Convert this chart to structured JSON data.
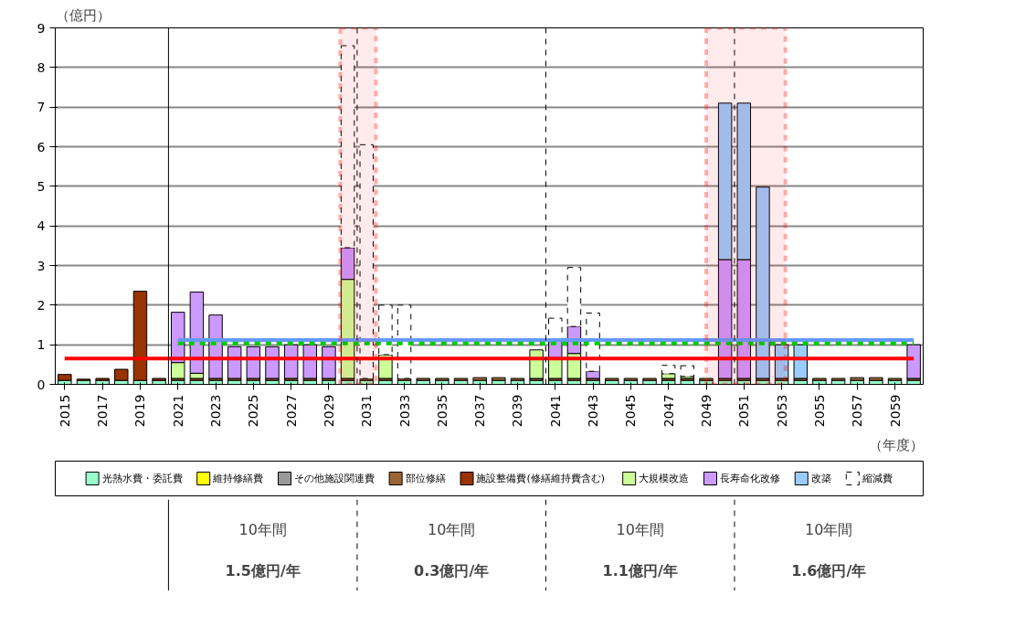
{
  "chart_data": {
    "type": "bar",
    "stacked": true,
    "ylabel": "（億円）",
    "xlabel": "（年度）",
    "x": [
      2015,
      2016,
      2017,
      2018,
      2019,
      2020,
      2021,
      2022,
      2023,
      2024,
      2025,
      2026,
      2027,
      2028,
      2029,
      2030,
      2031,
      2032,
      2033,
      2034,
      2035,
      2036,
      2037,
      2038,
      2039,
      2040,
      2041,
      2042,
      2043,
      2044,
      2045,
      2046,
      2047,
      2048,
      2049,
      2050,
      2051,
      2052,
      2053,
      2054,
      2055,
      2056,
      2057,
      2058,
      2059,
      2060
    ],
    "xlim": [
      2014.5,
      2060.5
    ],
    "xticks": [
      2015,
      2017,
      2019,
      2021,
      2023,
      2025,
      2027,
      2029,
      2031,
      2033,
      2035,
      2037,
      2039,
      2041,
      2043,
      2045,
      2047,
      2049,
      2051,
      2053,
      2055,
      2057,
      2059
    ],
    "ylim": [
      0,
      9
    ],
    "yticks": [
      0,
      1,
      2,
      3,
      4,
      5,
      6,
      7,
      8,
      9
    ],
    "grid": "y",
    "legend": "bottom",
    "series": [
      {
        "name": "光熱水費・委託費",
        "color": "#99ffcc",
        "values": [
          0.1,
          0.1,
          0.1,
          0.1,
          0.1,
          0.1,
          0.1,
          0.1,
          0.1,
          0.1,
          0.1,
          0.1,
          0.1,
          0.1,
          0.1,
          0.1,
          0.1,
          0.1,
          0.1,
          0.1,
          0.1,
          0.1,
          0.1,
          0.1,
          0.1,
          0.1,
          0.1,
          0.1,
          0.1,
          0.1,
          0.1,
          0.1,
          0.1,
          0.1,
          0.1,
          0.1,
          0.1,
          0.1,
          0.1,
          0.1,
          0.1,
          0.1,
          0.1,
          0.1,
          0.1,
          0.1
        ]
      },
      {
        "name": "維持修繕費",
        "color": "#ffff00",
        "values": [
          0,
          0,
          0,
          0,
          0,
          0,
          0,
          0,
          0,
          0,
          0,
          0,
          0,
          0,
          0,
          0,
          0,
          0,
          0,
          0,
          0,
          0,
          0,
          0,
          0,
          0,
          0,
          0,
          0,
          0,
          0,
          0,
          0,
          0,
          0,
          0,
          0,
          0,
          0,
          0,
          0,
          0,
          0,
          0,
          0,
          0
        ]
      },
      {
        "name": "その他施設関連費",
        "color": "#999999",
        "values": [
          0,
          0,
          0,
          0,
          0,
          0,
          0,
          0,
          0,
          0,
          0,
          0,
          0,
          0,
          0,
          0,
          0,
          0,
          0,
          0,
          0,
          0,
          0,
          0,
          0,
          0,
          0,
          0,
          0,
          0,
          0,
          0,
          0,
          0,
          0,
          0,
          0,
          0,
          0,
          0,
          0,
          0,
          0,
          0,
          0,
          0
        ]
      },
      {
        "name": "部位修繕",
        "color": "#996633",
        "values": [
          0,
          0,
          0,
          0,
          0,
          0,
          0.05,
          0.05,
          0.05,
          0.05,
          0.05,
          0.05,
          0.05,
          0.05,
          0.05,
          0.05,
          0.05,
          0.05,
          0.05,
          0.05,
          0.05,
          0.05,
          0.07,
          0.07,
          0.05,
          0.05,
          0.05,
          0.05,
          0.05,
          0.05,
          0.05,
          0.05,
          0.05,
          0.05,
          0.05,
          0.05,
          0.05,
          0.05,
          0.05,
          0.05,
          0.05,
          0.05,
          0.07,
          0.07,
          0.05,
          0.05
        ]
      },
      {
        "name": "施設整備費(修繕維持費含む)",
        "color": "#993300",
        "values": [
          0.15,
          0.03,
          0.05,
          0.28,
          2.25,
          0.05,
          0,
          0,
          0,
          0,
          0,
          0,
          0,
          0,
          0,
          0,
          0,
          0,
          0,
          0,
          0,
          0,
          0,
          0,
          0,
          0,
          0,
          0,
          0,
          0,
          0,
          0,
          0,
          0,
          0,
          0,
          0,
          0,
          0,
          0,
          0,
          0,
          0,
          0,
          0,
          0
        ]
      },
      {
        "name": "大規模改造",
        "color": "#ccff99",
        "values": [
          0,
          0,
          0,
          0,
          0,
          0,
          0.4,
          0.13,
          0,
          0,
          0,
          0,
          0,
          0,
          0,
          2.5,
          0,
          0.6,
          0,
          0,
          0,
          0,
          0,
          0,
          0,
          0.72,
          0.5,
          0.63,
          0,
          0,
          0,
          0,
          0.12,
          0.05,
          0,
          0,
          0,
          0,
          0,
          0,
          0,
          0,
          0,
          0,
          0,
          0
        ]
      },
      {
        "name": "長寿命化改修",
        "color": "#cc99ff",
        "values": [
          0,
          0,
          0,
          0,
          0,
          0,
          1.27,
          2.05,
          1.6,
          0.8,
          0.8,
          0.8,
          0.85,
          0.85,
          0.8,
          0.8,
          0,
          0,
          0,
          0,
          0,
          0,
          0,
          0,
          0,
          0,
          0.45,
          0.68,
          0.18,
          0,
          0,
          0,
          0,
          0,
          0,
          3.0,
          3.0,
          0,
          0,
          0,
          0,
          0,
          0,
          0,
          0,
          0.85
        ]
      },
      {
        "name": "改築",
        "color": "#99ccff",
        "values": [
          0,
          0,
          0,
          0,
          0,
          0,
          0,
          0,
          0,
          0,
          0,
          0,
          0,
          0,
          0,
          0,
          0,
          0,
          0,
          0,
          0,
          0,
          0,
          0,
          0,
          0,
          0,
          0,
          0,
          0,
          0,
          0,
          0,
          0,
          0,
          3.95,
          3.95,
          4.83,
          0.85,
          0.85,
          0,
          0,
          0,
          0,
          0,
          0
        ]
      },
      {
        "name": "縮減費",
        "color": "#ffffff",
        "line_style": "dashed",
        "values": [
          0,
          0,
          0,
          0,
          0,
          0,
          0,
          0,
          0,
          0,
          0,
          0,
          0,
          0,
          0,
          5.1,
          5.9,
          1.25,
          1.85,
          0,
          0,
          0,
          0,
          0,
          0,
          0,
          0.57,
          1.49,
          1.47,
          0,
          0,
          0,
          0.21,
          0.27,
          0,
          0,
          0,
          0,
          0,
          0,
          0,
          0,
          0,
          0,
          0,
          0
        ]
      },
      {
        "type": "line",
        "color": "#ff0000",
        "x": [
          2015,
          2060
        ],
        "values": [
          0.65,
          0.65
        ]
      },
      {
        "type": "line",
        "color": "#6699ff",
        "x": [
          2021,
          2060
        ],
        "values": [
          1.12,
          1.12
        ]
      },
      {
        "type": "line",
        "color": "#00cc00",
        "line_style": "dashed",
        "x": [
          2021,
          2060
        ],
        "values": [
          1.03,
          1.03
        ]
      }
    ],
    "ref_lines": [
      {
        "axis": "x",
        "value": 2020.5,
        "color": "#000000",
        "line_style": "solid"
      },
      {
        "axis": "x",
        "value": 2030.5,
        "color": "#000000",
        "line_style": "dashed"
      },
      {
        "axis": "x",
        "value": 2040.5,
        "color": "#000000",
        "line_style": "dashed"
      },
      {
        "axis": "x",
        "value": 2050.5,
        "color": "#000000",
        "line_style": "dashed"
      }
    ],
    "bands": [
      {
        "axis": "x",
        "from": 2029.6,
        "to": 2031.5,
        "color": "#ff0000"
      },
      {
        "axis": "x",
        "from": 2049.0,
        "to": 2053.2,
        "color": "#ff0000"
      }
    ],
    "annotations": [
      "10年間\n1.5億円/年",
      "10年間\n0.3億円/年",
      "10年間\n1.1億円/年",
      "10年間\n1.6億円/年"
    ]
  }
}
